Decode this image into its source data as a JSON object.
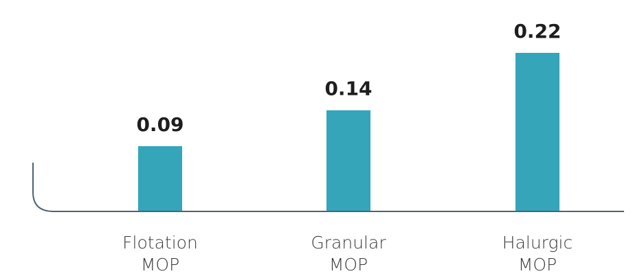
{
  "chart_data": {
    "type": "bar",
    "categories": [
      "Flotation MOP",
      "Granular MOP",
      "Halurgic MOP"
    ],
    "values": [
      0.09,
      0.14,
      0.22
    ],
    "color": "#35a5b9"
  }
}
